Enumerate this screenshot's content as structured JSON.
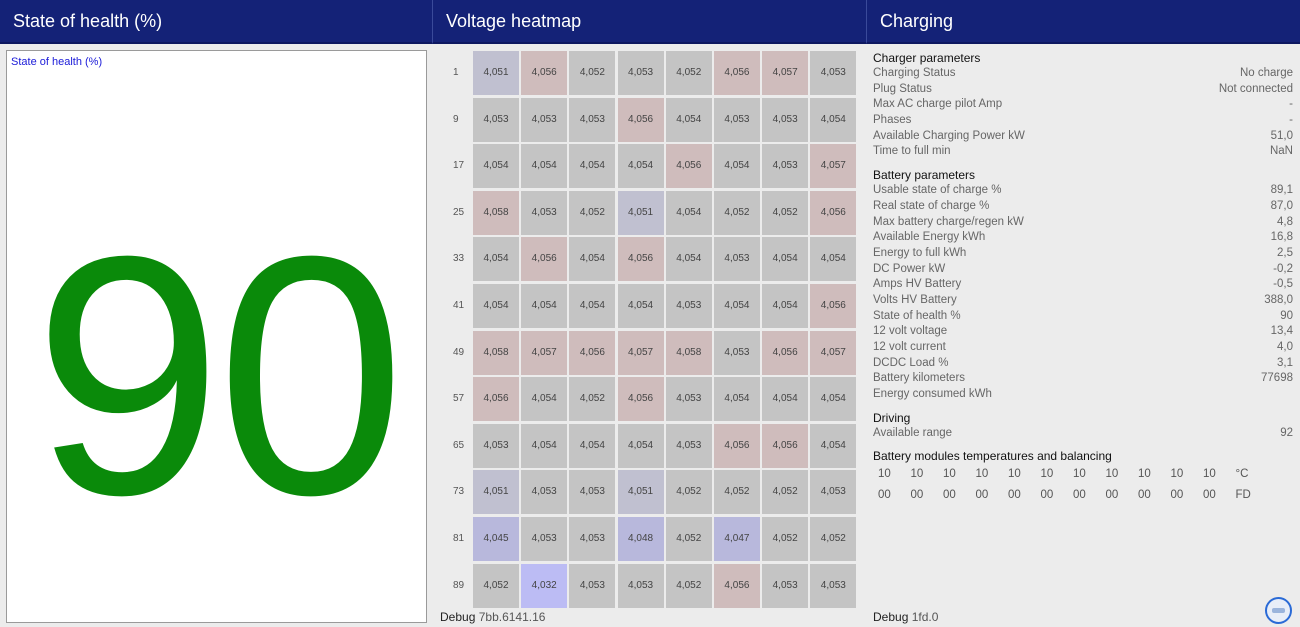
{
  "headers": {
    "soh": "State of health (%)",
    "heatmap": "Voltage heatmap",
    "charging": "Charging"
  },
  "soh_panel": {
    "label": "State of health (%)",
    "value": "90",
    "value_color": "#0a8a0a"
  },
  "heatmap": {
    "rows": [
      {
        "label": "1",
        "cells": [
          "4,051",
          "4,056",
          "4,052",
          "4,053",
          "4,052",
          "4,056",
          "4,057",
          "4,053"
        ]
      },
      {
        "label": "9",
        "cells": [
          "4,053",
          "4,053",
          "4,053",
          "4,056",
          "4,054",
          "4,053",
          "4,053",
          "4,054"
        ]
      },
      {
        "label": "17",
        "cells": [
          "4,054",
          "4,054",
          "4,054",
          "4,054",
          "4,056",
          "4,054",
          "4,053",
          "4,057"
        ]
      },
      {
        "label": "25",
        "cells": [
          "4,058",
          "4,053",
          "4,052",
          "4,051",
          "4,054",
          "4,052",
          "4,052",
          "4,056"
        ]
      },
      {
        "label": "33",
        "cells": [
          "4,054",
          "4,056",
          "4,054",
          "4,056",
          "4,054",
          "4,053",
          "4,054",
          "4,054"
        ]
      },
      {
        "label": "41",
        "cells": [
          "4,054",
          "4,054",
          "4,054",
          "4,054",
          "4,053",
          "4,054",
          "4,054",
          "4,056"
        ]
      },
      {
        "label": "49",
        "cells": [
          "4,058",
          "4,057",
          "4,056",
          "4,057",
          "4,058",
          "4,053",
          "4,056",
          "4,057"
        ]
      },
      {
        "label": "57",
        "cells": [
          "4,056",
          "4,054",
          "4,052",
          "4,056",
          "4,053",
          "4,054",
          "4,054",
          "4,054"
        ]
      },
      {
        "label": "65",
        "cells": [
          "4,053",
          "4,054",
          "4,054",
          "4,054",
          "4,053",
          "4,056",
          "4,056",
          "4,054"
        ]
      },
      {
        "label": "73",
        "cells": [
          "4,051",
          "4,053",
          "4,053",
          "4,051",
          "4,052",
          "4,052",
          "4,052",
          "4,053"
        ]
      },
      {
        "label": "81",
        "cells": [
          "4,045",
          "4,053",
          "4,053",
          "4,048",
          "4,052",
          "4,047",
          "4,052",
          "4,052"
        ]
      },
      {
        "label": "89",
        "cells": [
          "4,052",
          "4,032",
          "4,053",
          "4,053",
          "4,052",
          "4,056",
          "4,053",
          "4,053"
        ]
      }
    ]
  },
  "debug_mid": {
    "label": "Debug",
    "value": "7bb.6141.16"
  },
  "debug_right": {
    "label": "Debug",
    "value": "1fd.0"
  },
  "charging": {
    "charger_title": "Charger parameters",
    "charger": [
      {
        "k": "Charging Status",
        "v": "No charge"
      },
      {
        "k": "Plug Status",
        "v": "Not connected"
      },
      {
        "k": "Max AC charge pilot Amp",
        "v": "-"
      },
      {
        "k": "Phases",
        "v": "-"
      },
      {
        "k": "Available Charging Power kW",
        "v": "51,0"
      },
      {
        "k": "Time to full min",
        "v": "NaN"
      }
    ],
    "battery_title": "Battery parameters",
    "battery": [
      {
        "k": "Usable state of charge %",
        "v": "89,1"
      },
      {
        "k": "Real state of charge %",
        "v": "87,0"
      },
      {
        "k": "Max battery charge/regen kW",
        "v": "4,8"
      },
      {
        "k": "Available Energy kWh",
        "v": "16,8"
      },
      {
        "k": "Energy to full kWh",
        "v": "2,5"
      },
      {
        "k": "DC Power kW",
        "v": "-0,2"
      },
      {
        "k": "Amps HV Battery",
        "v": "-0,5"
      },
      {
        "k": "Volts HV Battery",
        "v": "388,0"
      },
      {
        "k": "State of health %",
        "v": "90"
      },
      {
        "k": "12 volt voltage",
        "v": "13,4"
      },
      {
        "k": "12 volt current",
        "v": "4,0"
      },
      {
        "k": "DCDC Load %",
        "v": "3,1"
      },
      {
        "k": "Battery kilometers",
        "v": "77698"
      },
      {
        "k": "Energy consumed kWh",
        "v": ""
      }
    ],
    "driving_title": "Driving",
    "driving": [
      {
        "k": "Available range",
        "v": "92"
      }
    ],
    "modules_title": "Battery modules temperatures and balancing",
    "modules_temps": [
      "10",
      "10",
      "10",
      "10",
      "10",
      "10",
      "10",
      "10",
      "10",
      "10",
      "10",
      "°C"
    ],
    "modules_balance": [
      "00",
      "00",
      "00",
      "00",
      "00",
      "00",
      "00",
      "00",
      "00",
      "00",
      "00",
      "FD"
    ]
  }
}
